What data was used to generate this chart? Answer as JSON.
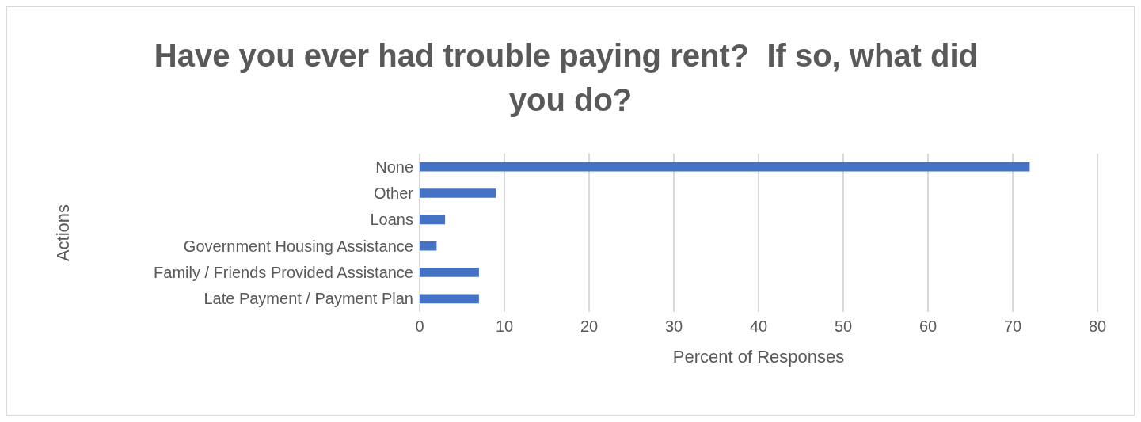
{
  "chart_data": {
    "type": "bar",
    "orientation": "horizontal",
    "title": "Have you ever had trouble paying rent?  If so, what did you do?",
    "xlabel": "Percent of Responses",
    "ylabel": "Actions",
    "categories": [
      "None",
      "Other",
      "Loans",
      "Government Housing Assistance",
      "Family / Friends Provided Assistance",
      "Late Payment / Payment Plan"
    ],
    "values": [
      72,
      9,
      3,
      2,
      7,
      7
    ],
    "color": "#4472c4",
    "xlim": [
      0,
      80
    ],
    "xticks": [
      0,
      10,
      20,
      30,
      40,
      50,
      60,
      70,
      80
    ],
    "grid": "x"
  }
}
